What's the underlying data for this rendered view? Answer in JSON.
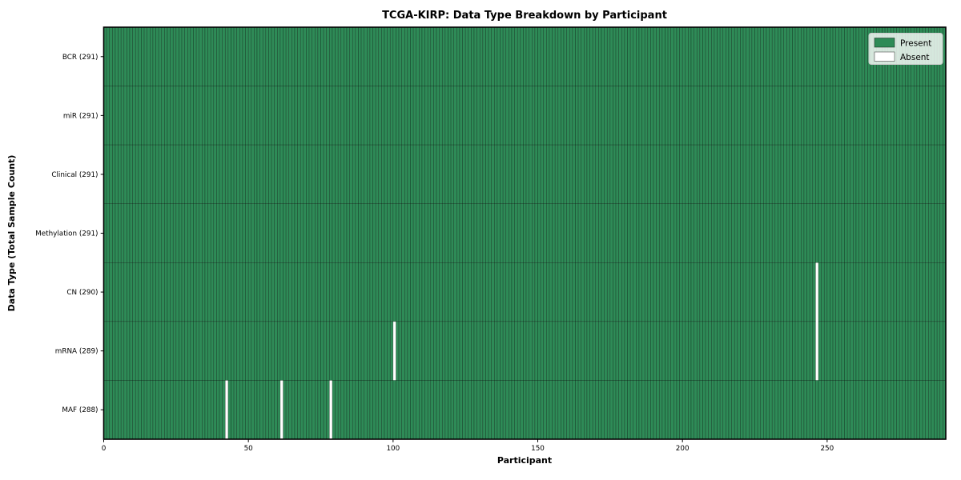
{
  "figure": {
    "background_color": "#ffffff"
  },
  "chart_data": {
    "type": "heatmap",
    "title": "TCGA-KIRP: Data Type Breakdown by Participant",
    "xlabel": "Participant",
    "ylabel": "Data Type (Total Sample Count)",
    "n_participants": 291,
    "x_ticks": [
      0,
      50,
      100,
      150,
      200,
      250
    ],
    "rows": [
      {
        "label": "BCR (291)",
        "data_type": "BCR",
        "present_count": 291,
        "absent_participants": []
      },
      {
        "label": "miR (291)",
        "data_type": "miR",
        "present_count": 291,
        "absent_participants": []
      },
      {
        "label": "Clinical (291)",
        "data_type": "Clinical",
        "present_count": 291,
        "absent_participants": []
      },
      {
        "label": "Methylation (291)",
        "data_type": "Methylation",
        "present_count": 291,
        "absent_participants": []
      },
      {
        "label": "CN (290)",
        "data_type": "CN",
        "present_count": 290,
        "absent_participants": [
          246
        ]
      },
      {
        "label": "mRNA (289)",
        "data_type": "mRNA",
        "present_count": 289,
        "absent_participants": [
          100,
          246
        ]
      },
      {
        "label": "MAF (288)",
        "data_type": "MAF",
        "present_count": 288,
        "absent_participants": [
          42,
          61,
          78
        ]
      }
    ],
    "legend": {
      "position": "upper-right",
      "entries": [
        {
          "label": "Present",
          "color": "#2e8b57"
        },
        {
          "label": "Absent",
          "color": "#ffffff"
        }
      ]
    },
    "colors": {
      "present": "#2e8b57",
      "absent": "#ffffff",
      "cell_edge": "#000000",
      "plot_border": "#000000",
      "legend_edge": "#cccccc",
      "legend_background": "#ffffff"
    }
  }
}
